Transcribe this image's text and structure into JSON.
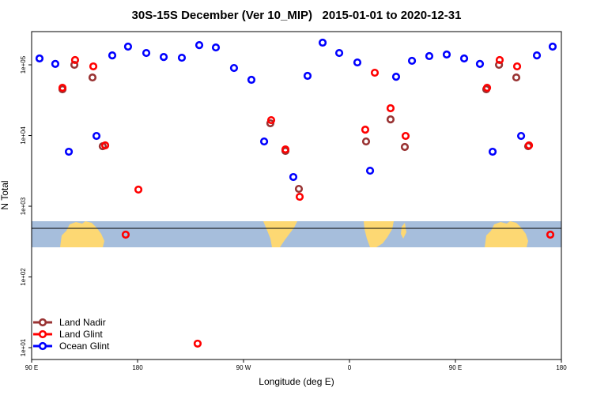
{
  "chart_data": {
    "type": "scatter",
    "title": "30S-15S December (Ver 10_MIP)   2015-01-01 to 2020-12-31",
    "x_label": "Longitude (deg E)",
    "y_label": "N Total",
    "xlim": [
      90,
      540
    ],
    "ylim": [
      6.8,
      295000
    ],
    "ylog": true,
    "legend": "bottom-left",
    "xticks": [
      {
        "value": 90,
        "label": "90 E"
      },
      {
        "value": 180,
        "label": "180"
      },
      {
        "value": 270,
        "label": "90 W"
      },
      {
        "value": 360,
        "label": "0"
      },
      {
        "value": 450,
        "label": "90 E"
      },
      {
        "value": 540,
        "label": "180"
      }
    ],
    "yticks": [
      {
        "value": 10,
        "label": "1e+01"
      },
      {
        "value": 100,
        "label": "1e+02"
      },
      {
        "value": 1000,
        "label": "1e+03"
      },
      {
        "value": 10000,
        "label": "1e+04"
      },
      {
        "value": 100000,
        "label": "1e+05"
      }
    ],
    "series": [
      {
        "name": "Land Nadir",
        "color": "#993333",
        "x": [
          116.2,
          126.3,
          141.7,
          150.4,
          292.8,
          305.6,
          317.0,
          374.1,
          394.9,
          407.0,
          476.2,
          487.0,
          501.7,
          511.8
        ],
        "values": [
          45100,
          100000,
          66200,
          7060,
          14900,
          6060,
          1760,
          8240,
          16900,
          6890,
          45100,
          100000,
          66200,
          7060
        ]
      },
      {
        "name": "Land Glint",
        "color": "#ff0000",
        "x": [
          116.2,
          126.9,
          142.4,
          152.5,
          180.7,
          169.9,
          231.0,
          293.5,
          305.6,
          317.7,
          373.4,
          381.5,
          394.9,
          407.7,
          476.9,
          487.6,
          502.4,
          512.5,
          530.6
        ],
        "values": [
          47400,
          117000,
          95000,
          7250,
          1720,
          396,
          11.4,
          16500,
          6370,
          1360,
          12100,
          77300,
          24300,
          9870,
          47400,
          117000,
          95000,
          7250,
          396
        ]
      },
      {
        "name": "Ocean Glint",
        "color": "#0000ff",
        "x": [
          96.7,
          110.1,
          121.6,
          145.1,
          158.5,
          171.9,
          187.4,
          202.2,
          217.6,
          232.4,
          246.5,
          261.9,
          276.7,
          287.5,
          312.3,
          324.4,
          337.2,
          351.3,
          366.7,
          377.5,
          399.6,
          413.1,
          427.8,
          442.6,
          457.4,
          470.8,
          481.6,
          505.8,
          519.2,
          532.6
        ],
        "values": [
          123000,
          103000,
          5900,
          9870,
          136000,
          181000,
          147000,
          129000,
          126000,
          190000,
          176000,
          90200,
          61400,
          8240,
          2590,
          69800,
          206000,
          147000,
          108000,
          3180,
          67900,
          114000,
          133000,
          140000,
          123000,
          103000,
          5900,
          9870,
          136000,
          181000
        ]
      }
    ]
  }
}
